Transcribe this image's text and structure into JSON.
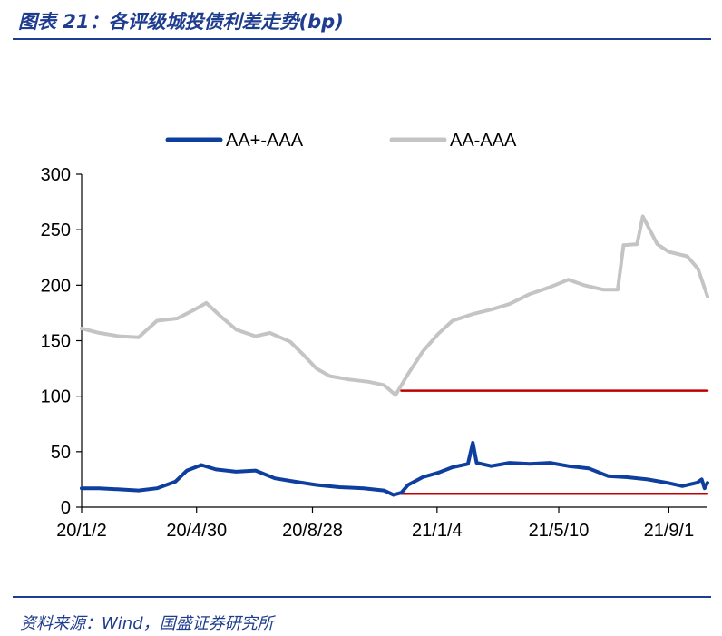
{
  "header": {
    "title": "图表 21：各评级城投债利差走势(bp)"
  },
  "footer": {
    "source": "资料来源：Wind，国盛证券研究所"
  },
  "colors": {
    "aa_plus": "#0e3f9e",
    "aa": "#c4c4c4",
    "ref": "#c00000",
    "accent": "#1f3d8f"
  },
  "chart_data": {
    "type": "line",
    "title": "图表 21：各评级城投债利差走势(bp)",
    "xlabel": "",
    "ylabel": "",
    "ylim": [
      0,
      300
    ],
    "yticks": [
      0,
      50,
      100,
      150,
      200,
      250,
      300
    ],
    "x_range": [
      "2020-01-02",
      "2021-10-11"
    ],
    "xtick_labels": [
      {
        "label": "20/1/2",
        "date": "2020-01-02"
      },
      {
        "label": "20/4/30",
        "date": "2020-04-30"
      },
      {
        "label": "20/8/28",
        "date": "2020-08-28"
      },
      {
        "label": "21/1/4",
        "date": "2021-01-04"
      },
      {
        "label": "21/5/10",
        "date": "2021-05-10"
      },
      {
        "label": "21/9/1",
        "date": "2021-09-01"
      }
    ],
    "legend": {
      "position": "top"
    },
    "grid": false,
    "series": [
      {
        "name": "AA+-AAA",
        "color": "#0e3f9e",
        "points": [
          [
            "2020-01-02",
            17
          ],
          [
            "2020-01-20",
            17
          ],
          [
            "2020-02-10",
            16
          ],
          [
            "2020-03-01",
            15
          ],
          [
            "2020-03-20",
            17
          ],
          [
            "2020-04-08",
            23
          ],
          [
            "2020-04-20",
            33
          ],
          [
            "2020-05-05",
            38
          ],
          [
            "2020-05-20",
            34
          ],
          [
            "2020-06-10",
            32
          ],
          [
            "2020-06-30",
            33
          ],
          [
            "2020-07-20",
            26
          ],
          [
            "2020-08-10",
            23
          ],
          [
            "2020-09-01",
            20
          ],
          [
            "2020-09-25",
            18
          ],
          [
            "2020-10-20",
            17
          ],
          [
            "2020-11-10",
            15
          ],
          [
            "2020-11-20",
            11
          ],
          [
            "2020-11-28",
            13
          ],
          [
            "2020-12-05",
            20
          ],
          [
            "2020-12-20",
            27
          ],
          [
            "2021-01-05",
            31
          ],
          [
            "2021-01-20",
            36
          ],
          [
            "2021-02-05",
            39
          ],
          [
            "2021-02-10",
            58
          ],
          [
            "2021-02-14",
            40
          ],
          [
            "2021-03-01",
            37
          ],
          [
            "2021-03-20",
            40
          ],
          [
            "2021-04-10",
            39
          ],
          [
            "2021-05-01",
            40
          ],
          [
            "2021-05-20",
            37
          ],
          [
            "2021-06-10",
            35
          ],
          [
            "2021-06-30",
            28
          ],
          [
            "2021-07-20",
            27
          ],
          [
            "2021-08-10",
            25
          ],
          [
            "2021-08-30",
            22
          ],
          [
            "2021-09-15",
            19
          ],
          [
            "2021-09-30",
            22
          ],
          [
            "2021-10-05",
            25
          ],
          [
            "2021-10-08",
            17
          ],
          [
            "2021-10-11",
            22
          ]
        ]
      },
      {
        "name": "AA-AAA",
        "color": "#c4c4c4",
        "points": [
          [
            "2020-01-02",
            161
          ],
          [
            "2020-01-20",
            157
          ],
          [
            "2020-02-10",
            154
          ],
          [
            "2020-03-01",
            153
          ],
          [
            "2020-03-20",
            168
          ],
          [
            "2020-04-10",
            170
          ],
          [
            "2020-04-28",
            178
          ],
          [
            "2020-05-10",
            184
          ],
          [
            "2020-05-25",
            172
          ],
          [
            "2020-06-10",
            160
          ],
          [
            "2020-06-30",
            154
          ],
          [
            "2020-07-15",
            157
          ],
          [
            "2020-08-05",
            149
          ],
          [
            "2020-08-20",
            136
          ],
          [
            "2020-09-01",
            125
          ],
          [
            "2020-09-15",
            118
          ],
          [
            "2020-10-05",
            115
          ],
          [
            "2020-10-25",
            113
          ],
          [
            "2020-11-10",
            110
          ],
          [
            "2020-11-22",
            101
          ],
          [
            "2020-12-05",
            120
          ],
          [
            "2020-12-20",
            140
          ],
          [
            "2021-01-05",
            156
          ],
          [
            "2021-01-20",
            168
          ],
          [
            "2021-02-10",
            174
          ],
          [
            "2021-03-01",
            178
          ],
          [
            "2021-03-20",
            183
          ],
          [
            "2021-04-10",
            192
          ],
          [
            "2021-04-30",
            198
          ],
          [
            "2021-05-20",
            205
          ],
          [
            "2021-06-05",
            200
          ],
          [
            "2021-06-25",
            196
          ],
          [
            "2021-07-10",
            196
          ],
          [
            "2021-07-16",
            236
          ],
          [
            "2021-07-30",
            237
          ],
          [
            "2021-08-05",
            262
          ],
          [
            "2021-08-20",
            237
          ],
          [
            "2021-09-01",
            230
          ],
          [
            "2021-09-20",
            226
          ],
          [
            "2021-10-01",
            215
          ],
          [
            "2021-10-11",
            190
          ]
        ]
      },
      {
        "name": "",
        "color": "#c00000",
        "role": "reference",
        "points": [
          [
            "2020-11-28",
            105
          ],
          [
            "2021-10-11",
            105
          ]
        ]
      },
      {
        "name": "",
        "color": "#c00000",
        "role": "reference",
        "points": [
          [
            "2020-11-28",
            12
          ],
          [
            "2021-10-11",
            12
          ]
        ]
      }
    ]
  }
}
